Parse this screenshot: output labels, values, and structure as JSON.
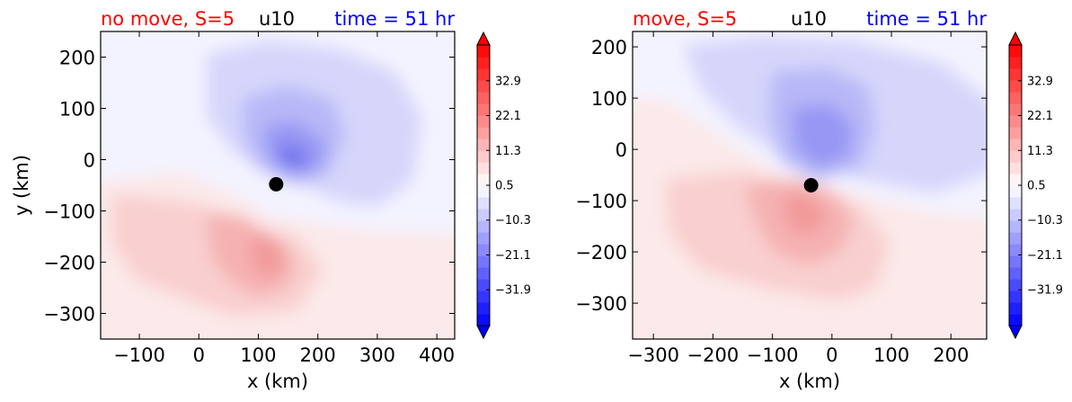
{
  "chart_data": [
    {
      "type": "heatmap",
      "variable": "u10",
      "title_left": "no move, S=5",
      "title_center": "u10",
      "title_right": "time = 51 hr",
      "title_left_color": "#ff0000",
      "title_center_color": "#000000",
      "title_right_color": "#0000ff",
      "xlabel": "x (km)",
      "ylabel": "y (km)",
      "xlim": [
        -165,
        430
      ],
      "ylim": [
        -350,
        250
      ],
      "xticks": [
        -100,
        0,
        100,
        200,
        300,
        400
      ],
      "xticklabels": [
        "−100",
        "0",
        "100",
        "200",
        "300",
        "400"
      ],
      "yticks": [
        200,
        100,
        0,
        -100,
        -200,
        -300
      ],
      "yticklabels": [
        "200",
        "100",
        "0",
        "−100",
        "−200",
        "−300"
      ],
      "center_marker": {
        "x": 130,
        "y": -48
      },
      "colorbar": {
        "min": -43,
        "max": 44,
        "ticks": [
          32.9,
          22.1,
          11.3,
          0.5,
          -10.3,
          -21.1,
          -31.9
        ],
        "ticklabels": [
          "32.9",
          "22.1",
          "11.3",
          "0.5",
          "−10.3",
          "−21.1",
          "−31.9"
        ],
        "colormap": "bwr",
        "extend": "both"
      }
    },
    {
      "type": "heatmap",
      "variable": "u10",
      "title_left": "move, S=5",
      "title_center": "u10",
      "title_right": "time = 51 hr",
      "title_left_color": "#ff0000",
      "title_center_color": "#000000",
      "title_right_color": "#0000ff",
      "xlabel": "x (km)",
      "ylabel": "",
      "xlim": [
        -335,
        260
      ],
      "ylim": [
        -370,
        230
      ],
      "xticks": [
        -300,
        -200,
        -100,
        0,
        100,
        200
      ],
      "xticklabels": [
        "−300",
        "−200",
        "−100",
        "0",
        "100",
        "200"
      ],
      "yticks": [
        200,
        100,
        0,
        -100,
        -200,
        -300
      ],
      "yticklabels": [
        "200",
        "100",
        "0",
        "−100",
        "−200",
        "−300"
      ],
      "center_marker": {
        "x": -35,
        "y": -70
      },
      "colorbar": {
        "min": -43,
        "max": 44,
        "ticks": [
          32.9,
          22.1,
          11.3,
          0.5,
          -10.3,
          -21.1,
          -31.9
        ],
        "ticklabels": [
          "32.9",
          "22.1",
          "11.3",
          "0.5",
          "−10.3",
          "−21.1",
          "−31.9"
        ],
        "colormap": "bwr",
        "extend": "both"
      }
    }
  ]
}
